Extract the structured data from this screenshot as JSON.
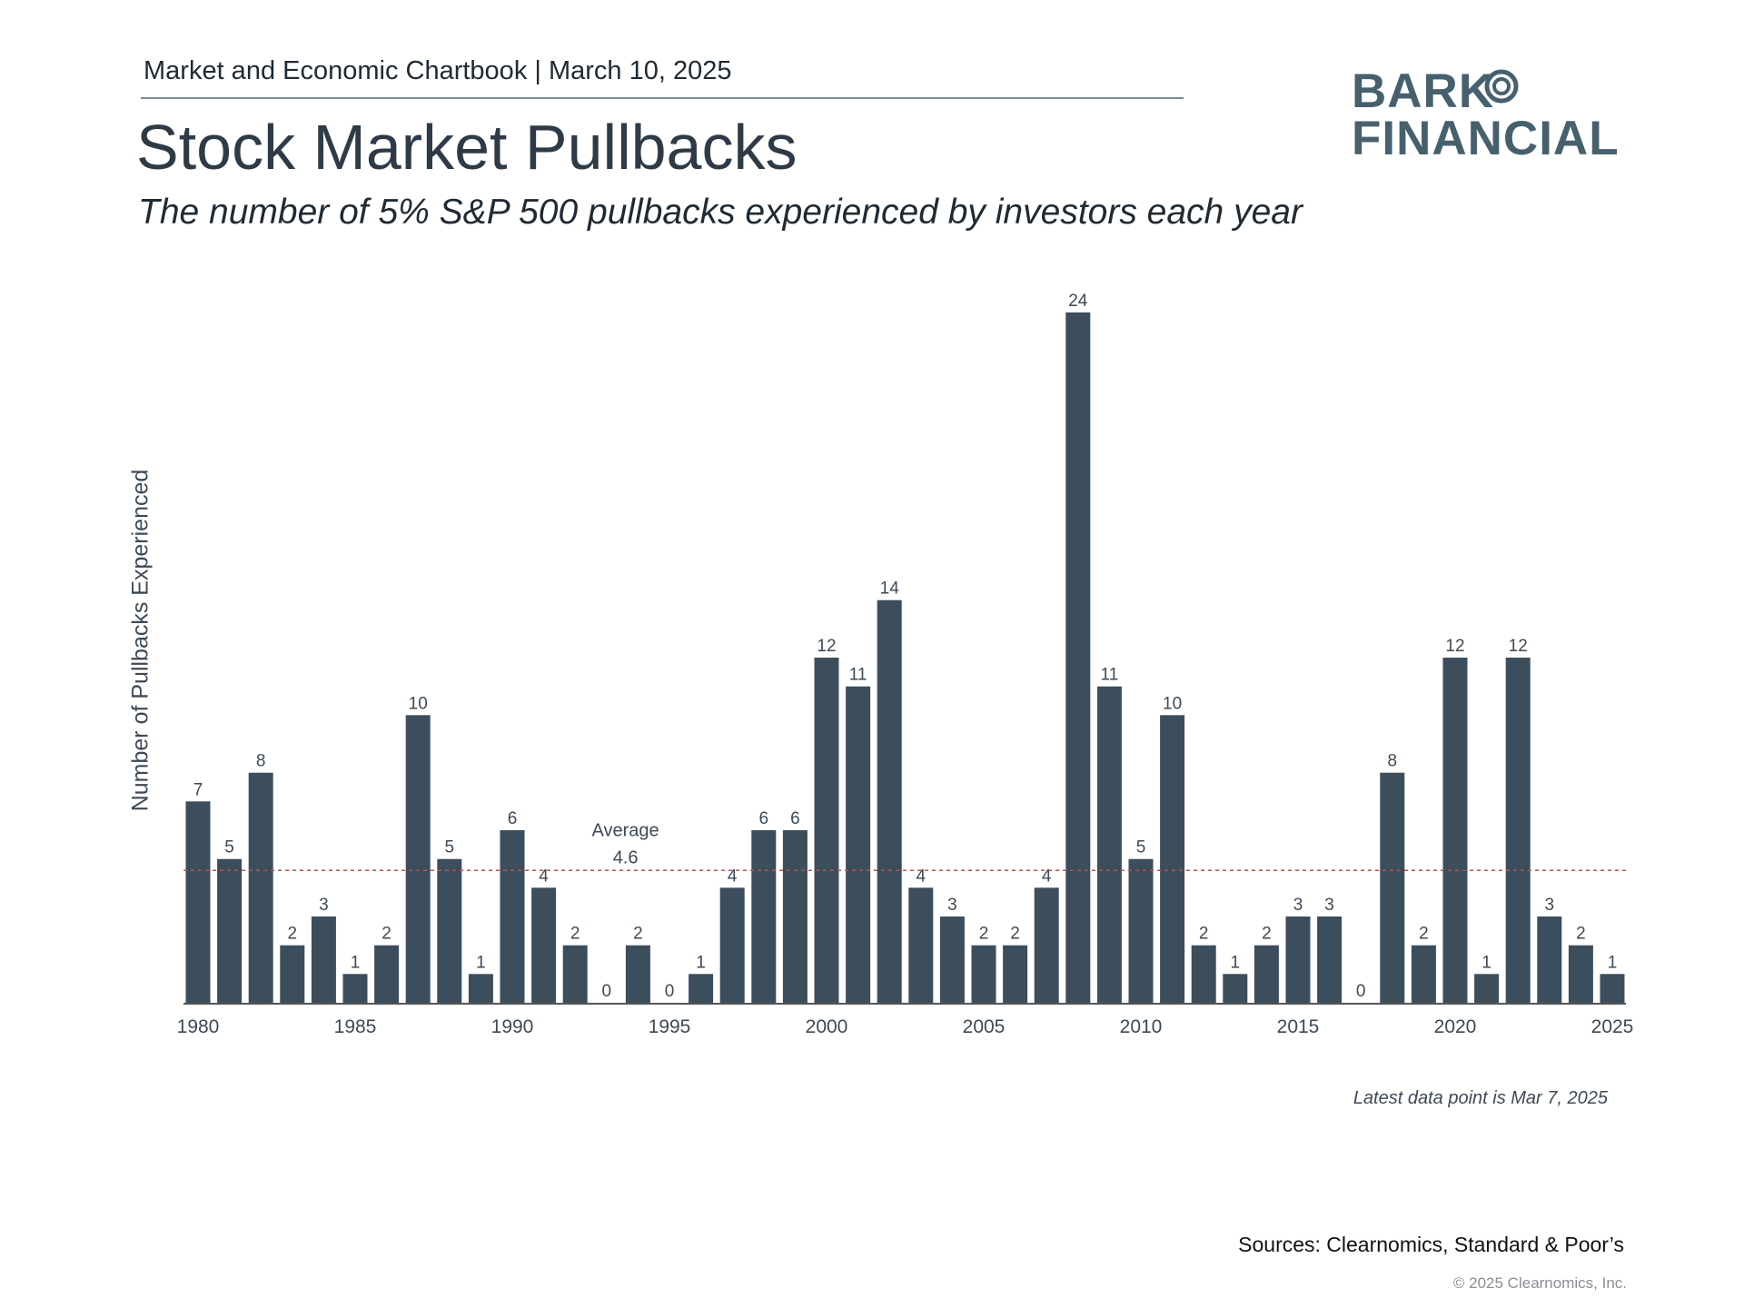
{
  "header": {
    "chartbook_line": "Market and Economic Chartbook | March 10, 2025"
  },
  "logo": {
    "line1": "BARK",
    "line2": "FINANCIAL"
  },
  "colors": {
    "bar": "#3c4d5c",
    "average_line": "#c0504d",
    "axis": "#555555",
    "logo": "#46606d"
  },
  "chart_data": {
    "type": "bar",
    "title": "Stock Market Pullbacks",
    "subtitle": "The number of 5% S&P 500 pullbacks experienced by investors each year",
    "xlabel": "",
    "ylabel": "Number of Pullbacks Experienced",
    "categories": [
      1980,
      1981,
      1982,
      1983,
      1984,
      1985,
      1986,
      1987,
      1988,
      1989,
      1990,
      1991,
      1992,
      1993,
      1994,
      1995,
      1996,
      1997,
      1998,
      1999,
      2000,
      2001,
      2002,
      2003,
      2004,
      2005,
      2006,
      2007,
      2008,
      2009,
      2010,
      2011,
      2012,
      2013,
      2014,
      2015,
      2016,
      2017,
      2018,
      2019,
      2020,
      2021,
      2022,
      2023,
      2024,
      2025
    ],
    "values": [
      7,
      5,
      8,
      2,
      3,
      1,
      2,
      10,
      5,
      1,
      6,
      4,
      2,
      0,
      2,
      0,
      1,
      4,
      6,
      6,
      12,
      11,
      14,
      4,
      3,
      2,
      2,
      4,
      24,
      11,
      5,
      10,
      2,
      1,
      2,
      3,
      3,
      0,
      8,
      2,
      12,
      1,
      12,
      3,
      2,
      1
    ],
    "x_tick_labels": [
      "1980",
      "1985",
      "1990",
      "1995",
      "2000",
      "2005",
      "2010",
      "2015",
      "2020",
      "2025"
    ],
    "ylim": [
      0,
      24
    ],
    "grid": false,
    "average": {
      "value": 4.6,
      "label_line1": "Average",
      "label_line2": "4.6"
    },
    "note": "Latest data point is Mar 7, 2025"
  },
  "footer": {
    "sources": "Sources: Clearnomics, Standard & Poor’s",
    "copyright": "© 2025 Clearnomics, Inc."
  }
}
